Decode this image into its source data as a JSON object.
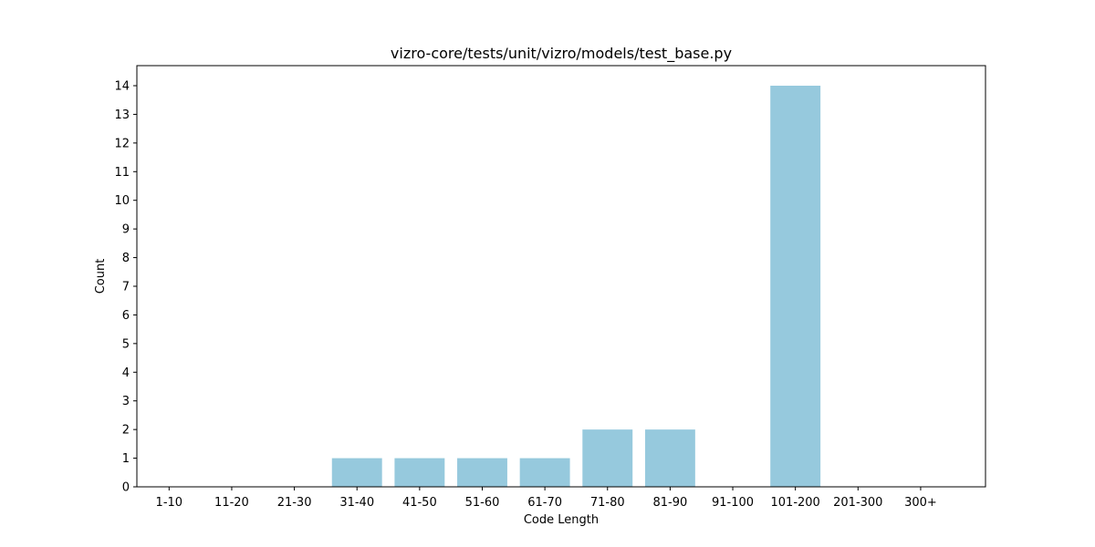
{
  "chart_data": {
    "type": "bar",
    "title": "vizro-core/tests/unit/vizro/models/test_base.py",
    "xlabel": "Code Length",
    "ylabel": "Count",
    "categories": [
      "1-10",
      "11-20",
      "21-30",
      "31-40",
      "41-50",
      "51-60",
      "61-70",
      "71-80",
      "81-90",
      "91-100",
      "101-200",
      "201-300",
      "300+"
    ],
    "values": [
      0,
      0,
      0,
      1,
      1,
      1,
      1,
      2,
      2,
      0,
      14,
      0,
      0
    ],
    "ylim": [
      0,
      14.7
    ],
    "yticks": [
      "0",
      "1",
      "2",
      "3",
      "4",
      "5",
      "6",
      "7",
      "8",
      "9",
      "10",
      "11",
      "12",
      "13",
      "14"
    ],
    "bar_color": "#96c9dd",
    "grid": false,
    "legend": "none"
  }
}
